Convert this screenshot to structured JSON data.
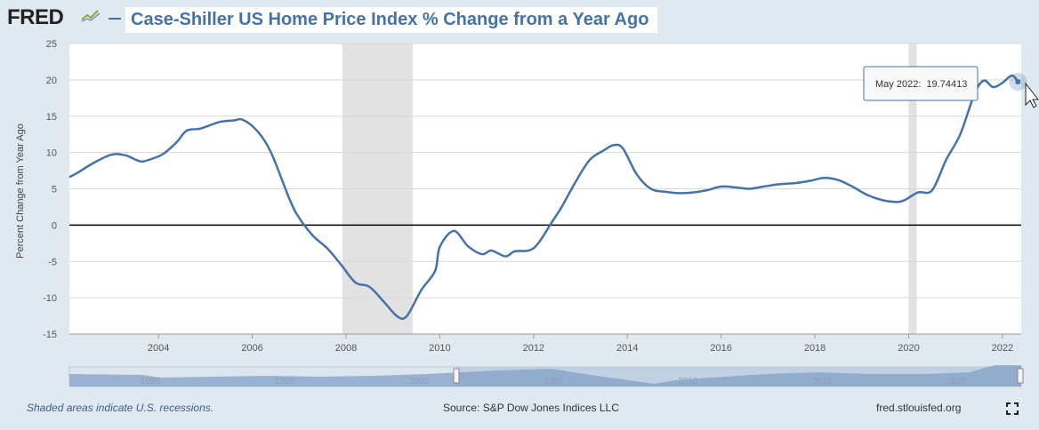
{
  "header": {
    "logo": "FRED",
    "title": "Case-Shiller US Home Price Index % Change from a Year Ago"
  },
  "footer": {
    "recession_note": "Shaded areas indicate U.S. recessions.",
    "source": "Source: S&P Dow Jones Indices LLC",
    "site": "fred.stlouisfed.org"
  },
  "tooltip": {
    "label": "May 2022:",
    "value": "19.74413",
    "x": 2022.33,
    "y": 19.74
  },
  "colors": {
    "line": "#4572a7",
    "recession": "#e2e2e2",
    "zero_line": "#000000",
    "grid": "#d8d8d8"
  },
  "chart_data": {
    "type": "line",
    "title": "Case-Shiller US Home Price Index % Change from a Year Ago",
    "xlabel": "",
    "ylabel": "Percent Change from Year Ago",
    "xlim": [
      2002.1,
      2022.4
    ],
    "ylim": [
      -15,
      25
    ],
    "yticks": [
      25,
      20,
      15,
      10,
      5,
      0,
      -5,
      -10,
      -15
    ],
    "xticks": [
      2004,
      2006,
      2008,
      2010,
      2012,
      2014,
      2016,
      2018,
      2020,
      2022
    ],
    "grid": true,
    "recessions": [
      [
        2007.92,
        2009.42
      ],
      [
        2020.0,
        2020.17
      ]
    ],
    "series": [
      {
        "name": "Case-Shiller US Home Price Index % Change from a Year Ago",
        "x": [
          2002.1,
          2002.3,
          2002.6,
          2003.0,
          2003.3,
          2003.6,
          2003.8,
          2004.1,
          2004.4,
          2004.6,
          2004.9,
          2005.3,
          2005.6,
          2005.8,
          2006.1,
          2006.4,
          2006.8,
          2007.0,
          2007.3,
          2007.6,
          2007.9,
          2008.2,
          2008.5,
          2008.8,
          2009.1,
          2009.3,
          2009.6,
          2009.9,
          2010.0,
          2010.3,
          2010.6,
          2010.9,
          2011.1,
          2011.4,
          2011.6,
          2011.9,
          2012.1,
          2012.4,
          2012.6,
          2012.9,
          2013.2,
          2013.5,
          2013.7,
          2013.9,
          2014.2,
          2014.5,
          2014.8,
          2015.1,
          2015.4,
          2015.7,
          2016.0,
          2016.3,
          2016.6,
          2016.9,
          2017.2,
          2017.6,
          2017.9,
          2018.2,
          2018.5,
          2018.8,
          2019.1,
          2019.4,
          2019.7,
          2019.9,
          2020.2,
          2020.5,
          2020.8,
          2021.1,
          2021.4,
          2021.6,
          2021.8,
          2022.0,
          2022.2,
          2022.33
        ],
        "y": [
          6.6,
          7.3,
          8.5,
          9.7,
          9.6,
          8.8,
          9.0,
          9.8,
          11.5,
          13.0,
          13.3,
          14.2,
          14.4,
          14.5,
          13.0,
          10.0,
          3.5,
          1.0,
          -1.5,
          -3.2,
          -5.5,
          -7.9,
          -8.5,
          -10.5,
          -12.6,
          -12.5,
          -9.0,
          -6.3,
          -3.0,
          -0.8,
          -2.9,
          -4.0,
          -3.5,
          -4.3,
          -3.6,
          -3.5,
          -2.5,
          0.5,
          2.5,
          6.0,
          9.0,
          10.3,
          11.0,
          10.6,
          7.0,
          5.0,
          4.6,
          4.4,
          4.5,
          4.8,
          5.3,
          5.2,
          5.0,
          5.3,
          5.6,
          5.8,
          6.1,
          6.5,
          6.2,
          5.3,
          4.2,
          3.5,
          3.2,
          3.4,
          4.5,
          4.8,
          9.0,
          12.5,
          18.0,
          19.9,
          19.0,
          19.6,
          20.6,
          19.74
        ]
      }
    ],
    "navigator": {
      "labels": [
        "1990",
        "1995",
        "2000",
        "2005",
        "2010",
        "2015",
        "2020"
      ]
    }
  }
}
